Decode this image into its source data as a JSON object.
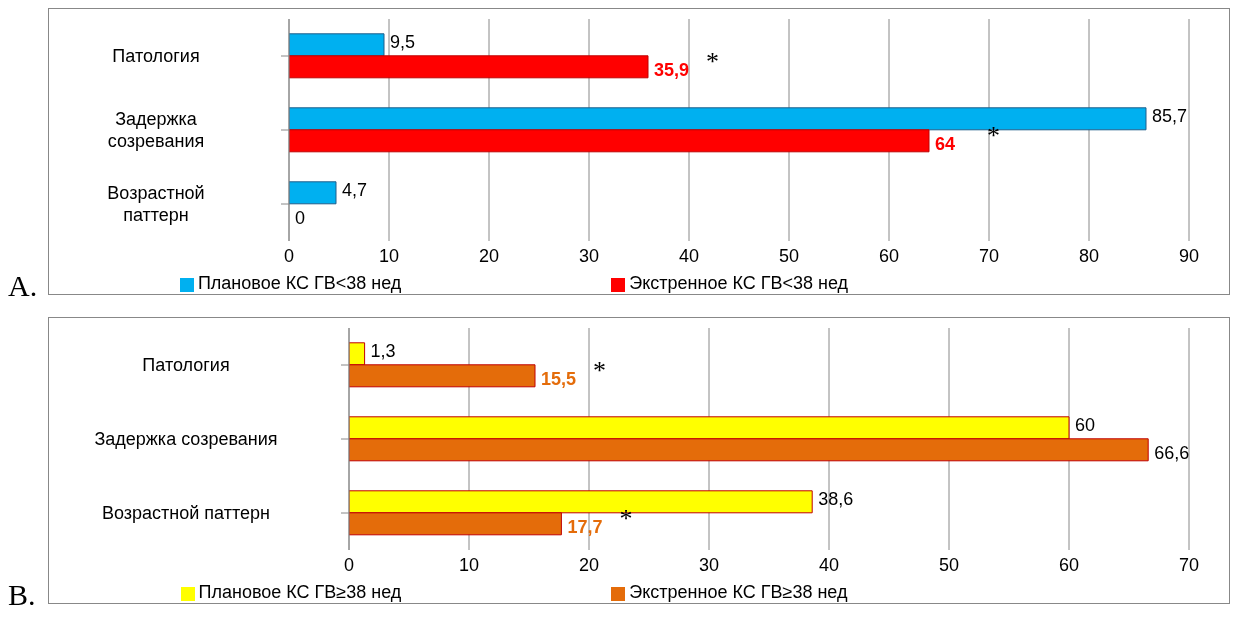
{
  "chart_data": [
    {
      "type": "bar",
      "orientation": "horizontal",
      "categories": [
        "Патология",
        "Задержка созревания",
        "Возрастной паттерн"
      ],
      "series": [
        {
          "name": "Плановое КС ГВ<38 нед",
          "color": "#00b0f0",
          "values": [
            9.5,
            85.7,
            4.7
          ],
          "value_labels": [
            "9,5",
            "85,7",
            "4,7"
          ]
        },
        {
          "name": "Экстренное КС ГВ<38 нед",
          "color": "#ff0000",
          "values": [
            35.9,
            64,
            0
          ],
          "value_labels": [
            "35,9",
            "64",
            "0"
          ]
        }
      ],
      "xlim": [
        0,
        90
      ],
      "xticks": [
        0,
        10,
        20,
        30,
        40,
        50,
        60,
        70,
        80,
        90
      ],
      "grid": "x",
      "legend": "bottom",
      "annotations": [
        "A.",
        {
          "text": "*",
          "x": 35.9,
          "y": "Патология"
        },
        {
          "text": "*",
          "x": 64,
          "y": "Задержка созревания"
        }
      ]
    },
    {
      "type": "bar",
      "orientation": "horizontal",
      "categories": [
        "Патология",
        "Задержка созревания",
        "Возрастной паттерн"
      ],
      "series": [
        {
          "name": "Плановое КС ГВ≥38 нед",
          "color": "#ffff00",
          "values": [
            1.3,
            60,
            38.6
          ],
          "value_labels": [
            "1,3",
            "60",
            "38,6"
          ]
        },
        {
          "name": "Экстренное КС ГВ≥38 нед",
          "color": "#e46c0a",
          "values": [
            15.5,
            66.6,
            17.7
          ],
          "value_labels": [
            "15,5",
            "66,6",
            "17,7"
          ]
        }
      ],
      "xlim": [
        0,
        70
      ],
      "xticks": [
        0,
        10,
        20,
        30,
        40,
        50,
        60,
        70
      ],
      "grid": "x",
      "legend": "bottom",
      "annotations": [
        "B.",
        {
          "text": "*",
          "x": 15.5,
          "y": "Патология"
        },
        {
          "text": "*",
          "x": 17.7,
          "y": "Возрастной паттерн"
        }
      ]
    }
  ]
}
